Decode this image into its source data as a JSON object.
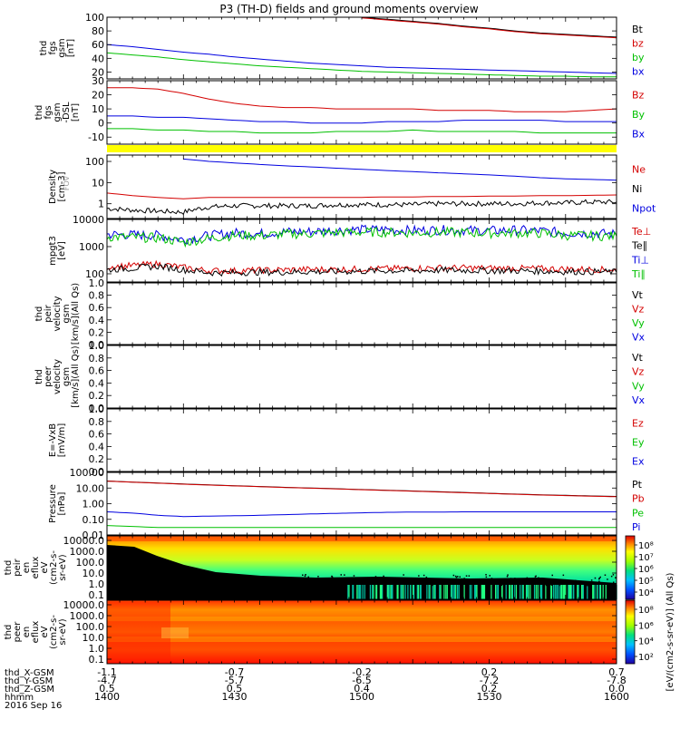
{
  "title": "P3 (TH-D) fields and ground moments overview",
  "colors": {
    "black": "#000000",
    "red": "#d40000",
    "green": "#00c000",
    "blue": "#0000e0",
    "yellow": "#ffff00"
  },
  "chart_data": [
    {
      "id": "fgs_gsm_mag",
      "type": "line",
      "ylabel_lines": [
        "thd",
        "fgs",
        "gsm",
        "[nT]"
      ],
      "y_ticks": [
        "100",
        "80",
        "60",
        "40",
        "20"
      ],
      "ylim": [
        10,
        100
      ],
      "legend": [
        {
          "label": "Bt",
          "color": "#000000"
        },
        {
          "label": "bz",
          "color": "#d40000"
        },
        {
          "label": "by",
          "color": "#00c000"
        },
        {
          "label": "bx",
          "color": "#0000e0"
        }
      ],
      "x": [
        1400,
        1410,
        1420,
        1430,
        1440,
        1450,
        1460,
        1470,
        1480,
        1490,
        1500,
        1510,
        1520,
        1530,
        1540,
        1550,
        1560,
        1570,
        1580,
        1590,
        1600
      ],
      "series": [
        {
          "name": "Bt",
          "color": "#000000",
          "values": [
            null,
            null,
            null,
            null,
            null,
            null,
            null,
            null,
            null,
            null,
            100,
            97,
            94,
            91,
            87,
            84,
            80,
            77,
            75,
            73,
            71
          ]
        },
        {
          "name": "bz",
          "color": "#d40000",
          "values": [
            null,
            null,
            null,
            null,
            null,
            null,
            null,
            null,
            null,
            null,
            99,
            96,
            93,
            90,
            86,
            83,
            79,
            76,
            74,
            72,
            70
          ]
        },
        {
          "name": "by",
          "color": "#00c000",
          "values": [
            48,
            45,
            42,
            38,
            35,
            32,
            29,
            27,
            25,
            23,
            21,
            20,
            19,
            18,
            17,
            16,
            15,
            14,
            14,
            13,
            13
          ]
        },
        {
          "name": "bx",
          "color": "#0000e0",
          "values": [
            60,
            57,
            53,
            49,
            46,
            42,
            39,
            36,
            33,
            31,
            29,
            27,
            26,
            25,
            24,
            23,
            22,
            21,
            20,
            19,
            18
          ]
        }
      ]
    },
    {
      "id": "fgs_gsm_comp",
      "type": "line",
      "ylabel_lines": [
        "thd",
        "fgs",
        "gsm",
        "-DSL",
        "[nT]"
      ],
      "y_ticks": [
        "30",
        "20",
        "10",
        "0",
        "-10"
      ],
      "ylim": [
        -15,
        30
      ],
      "legend": [
        {
          "label": "Bz",
          "color": "#d40000"
        },
        {
          "label": "By",
          "color": "#00c000"
        },
        {
          "label": "Bx",
          "color": "#0000e0"
        }
      ],
      "x": [
        1400,
        1410,
        1420,
        1430,
        1440,
        1450,
        1460,
        1470,
        1480,
        1490,
        1500,
        1510,
        1520,
        1530,
        1540,
        1550,
        1560,
        1570,
        1580,
        1590,
        1600
      ],
      "series": [
        {
          "name": "Bz",
          "color": "#d40000",
          "values": [
            25,
            25,
            24,
            21,
            17,
            14,
            12,
            11,
            11,
            10,
            10,
            10,
            10,
            9,
            9,
            9,
            8,
            8,
            8,
            9,
            10
          ]
        },
        {
          "name": "By",
          "color": "#00c000",
          "values": [
            -4,
            -4,
            -5,
            -5,
            -6,
            -6,
            -7,
            -7,
            -7,
            -6,
            -6,
            -6,
            -5,
            -6,
            -6,
            -6,
            -6,
            -7,
            -7,
            -7,
            -7
          ]
        },
        {
          "name": "Bx",
          "color": "#0000e0",
          "values": [
            5,
            5,
            4,
            4,
            3,
            2,
            1,
            1,
            0,
            0,
            0,
            1,
            1,
            1,
            2,
            2,
            2,
            2,
            1,
            1,
            1
          ]
        }
      ]
    },
    {
      "id": "density",
      "type": "line",
      "ylabel_lines": [
        "Density",
        "[cm-3]"
      ],
      "ylabel_faint": "FOV",
      "y_ticks": [
        "100",
        "10",
        "1"
      ],
      "ylog": true,
      "ylim": [
        0.2,
        200
      ],
      "legend": [
        {
          "label": "Ne",
          "color": "#d40000"
        },
        {
          "label": "Ni",
          "color": "#000000"
        },
        {
          "label": "Npot",
          "color": "#0000e0"
        }
      ],
      "x": [
        1400,
        1410,
        1420,
        1430,
        1440,
        1450,
        1460,
        1470,
        1480,
        1490,
        1500,
        1510,
        1520,
        1530,
        1540,
        1550,
        1560,
        1570,
        1580,
        1590,
        1600
      ],
      "series": [
        {
          "name": "Npot",
          "color": "#0000e0",
          "values": [
            null,
            null,
            null,
            130,
            100,
            85,
            72,
            62,
            55,
            48,
            42,
            37,
            33,
            29,
            26,
            23,
            20,
            17,
            15,
            14,
            13
          ]
        },
        {
          "name": "Ne",
          "color": "#d40000",
          "values": [
            3.2,
            2.4,
            2.0,
            1.7,
            2.0,
            2.0,
            2.0,
            2.0,
            2.0,
            2.0,
            2.0,
            2.1,
            2.1,
            2.2,
            2.2,
            2.3,
            2.3,
            2.4,
            2.4,
            2.5,
            2.6
          ]
        },
        {
          "name": "Ni",
          "color": "#000000",
          "values": [
            0.6,
            0.5,
            0.45,
            0.4,
            0.7,
            0.8,
            0.8,
            0.8,
            0.8,
            0.9,
            0.9,
            0.9,
            0.9,
            1.0,
            1.0,
            1.0,
            1.0,
            1.1,
            1.1,
            1.2,
            1.2
          ]
        }
      ]
    },
    {
      "id": "temperature",
      "type": "line",
      "ylabel_lines": [
        "mpgt3",
        "[eV]"
      ],
      "y_ticks": [
        "10000",
        "1000",
        "100"
      ],
      "ylog": true,
      "ylim": [
        50,
        10000
      ],
      "legend": [
        {
          "label": "Te⊥",
          "color": "#d40000"
        },
        {
          "label": "Te∥",
          "color": "#000000"
        },
        {
          "label": "Ti⊥",
          "color": "#0000e0"
        },
        {
          "label": "Ti∥",
          "color": "#00c000"
        }
      ],
      "x": [
        1400,
        1410,
        1420,
        1430,
        1440,
        1450,
        1460,
        1470,
        1480,
        1490,
        1500,
        1510,
        1520,
        1530,
        1540,
        1550,
        1560,
        1570,
        1580,
        1590,
        1600
      ],
      "series": [
        {
          "name": "Ti⊥",
          "color": "#0000e0",
          "values": [
            2800,
            2700,
            2600,
            1800,
            2500,
            3200,
            3000,
            3500,
            3600,
            4000,
            4200,
            4200,
            3900,
            4100,
            4000,
            3800,
            4000,
            3800,
            3200,
            3100,
            2900
          ]
        },
        {
          "name": "Ti∥",
          "color": "#00c000",
          "values": [
            2300,
            2200,
            2100,
            1400,
            2000,
            2600,
            2500,
            2900,
            3000,
            3300,
            3400,
            3400,
            3200,
            3400,
            3300,
            3100,
            3200,
            3100,
            2600,
            2500,
            2400
          ]
        },
        {
          "name": "Te⊥",
          "color": "#d40000",
          "values": [
            180,
            200,
            230,
            170,
            130,
            130,
            135,
            140,
            145,
            145,
            150,
            155,
            160,
            165,
            165,
            160,
            160,
            155,
            150,
            145,
            140
          ]
        },
        {
          "name": "Te∥",
          "color": "#000000",
          "values": [
            140,
            160,
            190,
            140,
            110,
            110,
            115,
            115,
            120,
            120,
            125,
            130,
            130,
            135,
            135,
            130,
            130,
            125,
            120,
            120,
            115
          ]
        }
      ]
    },
    {
      "id": "peir_velocity",
      "type": "line",
      "ylabel_lines": [
        "thd",
        "peir",
        "velocity",
        "gsm",
        "[km/s](All Qs)"
      ],
      "y_ticks": [
        "1.0",
        "0.8",
        "0.6",
        "0.4",
        "0.2",
        "0.0"
      ],
      "ylim": [
        0,
        1
      ],
      "legend": [
        {
          "label": "Vt",
          "color": "#000000"
        },
        {
          "label": "Vz",
          "color": "#d40000"
        },
        {
          "label": "Vy",
          "color": "#00c000"
        },
        {
          "label": "Vx",
          "color": "#0000e0"
        }
      ],
      "series": []
    },
    {
      "id": "peer_velocity",
      "type": "line",
      "ylabel_lines": [
        "thd",
        "peer",
        "velocity",
        "gsm",
        "[km/s](All Qs)"
      ],
      "y_ticks": [
        "1.0",
        "0.8",
        "0.6",
        "0.4",
        "0.2",
        "0.0"
      ],
      "ylim": [
        0,
        1
      ],
      "legend": [
        {
          "label": "Vt",
          "color": "#000000"
        },
        {
          "label": "Vz",
          "color": "#d40000"
        },
        {
          "label": "Vy",
          "color": "#00c000"
        },
        {
          "label": "Vx",
          "color": "#0000e0"
        }
      ],
      "series": []
    },
    {
      "id": "efield",
      "type": "line",
      "ylabel_lines": [
        "E=-VxB",
        "[mV/m]"
      ],
      "y_ticks": [
        "1.0",
        "0.8",
        "0.6",
        "0.4",
        "0.2",
        "0.0"
      ],
      "ylim": [
        0,
        1
      ],
      "legend": [
        {
          "label": "Ez",
          "color": "#d40000"
        },
        {
          "label": "Ey",
          "color": "#00c000"
        },
        {
          "label": "Ex",
          "color": "#0000e0"
        }
      ],
      "series": []
    },
    {
      "id": "pressure",
      "type": "line",
      "ylabel_lines": [
        "Pressure",
        "[nPa]"
      ],
      "y_ticks": [
        "100.00",
        "10.00",
        "1.00",
        "0.10",
        "0.01"
      ],
      "ylog": true,
      "ylim": [
        0.01,
        100
      ],
      "legend": [
        {
          "label": "Pt",
          "color": "#000000"
        },
        {
          "label": "Pb",
          "color": "#d40000"
        },
        {
          "label": "Pe",
          "color": "#00c000"
        },
        {
          "label": "Pi",
          "color": "#0000e0"
        }
      ],
      "x": [
        1400,
        1410,
        1420,
        1430,
        1440,
        1450,
        1460,
        1470,
        1480,
        1490,
        1500,
        1510,
        1520,
        1530,
        1540,
        1550,
        1560,
        1570,
        1580,
        1590,
        1600
      ],
      "series": [
        {
          "name": "Pt",
          "color": "#000000",
          "values": [
            28,
            24,
            21,
            18,
            16,
            14,
            12.5,
            11,
            10,
            9,
            8,
            7.2,
            6.5,
            5.8,
            5.2,
            4.6,
            4.1,
            3.7,
            3.4,
            3.1,
            2.9
          ]
        },
        {
          "name": "Pb",
          "color": "#d40000",
          "values": [
            27.5,
            23.5,
            20.5,
            17.6,
            15.6,
            13.7,
            12.2,
            10.8,
            9.8,
            8.8,
            7.8,
            7.0,
            6.3,
            5.6,
            5.0,
            4.5,
            4.0,
            3.6,
            3.3,
            3.0,
            2.8
          ]
        },
        {
          "name": "Pi",
          "color": "#0000e0",
          "values": [
            0.3,
            0.25,
            0.18,
            0.15,
            0.16,
            0.17,
            0.18,
            0.2,
            0.22,
            0.24,
            0.26,
            0.28,
            0.29,
            0.29,
            0.3,
            0.3,
            0.3,
            0.3,
            0.3,
            0.3,
            0.3
          ]
        },
        {
          "name": "Pe",
          "color": "#00c000",
          "values": [
            0.04,
            0.035,
            0.03,
            0.03,
            0.03,
            0.03,
            0.03,
            0.03,
            0.03,
            0.03,
            0.03,
            0.03,
            0.03,
            0.03,
            0.03,
            0.03,
            0.03,
            0.03,
            0.03,
            0.03,
            0.03
          ]
        }
      ]
    },
    {
      "id": "peir_spec",
      "type": "heatmap",
      "ylabel_lines": [
        "thd",
        "peir",
        "en",
        "eflux",
        "eV",
        "(cm2-s-",
        "sr-eV)"
      ],
      "y_ticks": [
        "10000.0",
        "1000.0",
        "100.0",
        "10.0",
        "1.0",
        "0.1"
      ],
      "ylog": true,
      "colorbar_ticks": [
        "10⁸",
        "10⁷",
        "10⁶",
        "10⁵",
        "10⁴"
      ]
    },
    {
      "id": "peer_spec",
      "type": "heatmap",
      "ylabel_lines": [
        "thd",
        "peer",
        "en",
        "eflux",
        "eV",
        "(cm2-s-",
        "sr-eV)"
      ],
      "y_ticks": [
        "10000.0",
        "1000.0",
        "100.0",
        "10.0",
        "1.0",
        "0.1"
      ],
      "ylog": true,
      "colorbar_ticks": [
        "10⁸",
        "10⁶",
        "10⁴",
        "10²"
      ]
    }
  ],
  "colorbar_label": "[eV/(cm2-s-sr-eV)] (All Qs)",
  "ephemeris": {
    "labels": [
      "thd_X-GSM",
      "thd_Y-GSM",
      "thd_Z-GSM",
      "hhmm",
      "2016 Sep 16"
    ],
    "columns": [
      {
        "vals": [
          "-1.1",
          "-4.7",
          "0.5",
          "1400"
        ]
      },
      {
        "vals": [
          "-0.7",
          "-5.7",
          "0.5",
          "1430"
        ]
      },
      {
        "vals": [
          "-0.2",
          "-6.5",
          "0.4",
          "1500"
        ]
      },
      {
        "vals": [
          "0.2",
          "-7.2",
          "0.2",
          "1530"
        ]
      },
      {
        "vals": [
          "0.7",
          "-7.8",
          "0.0",
          "1600"
        ]
      }
    ]
  }
}
